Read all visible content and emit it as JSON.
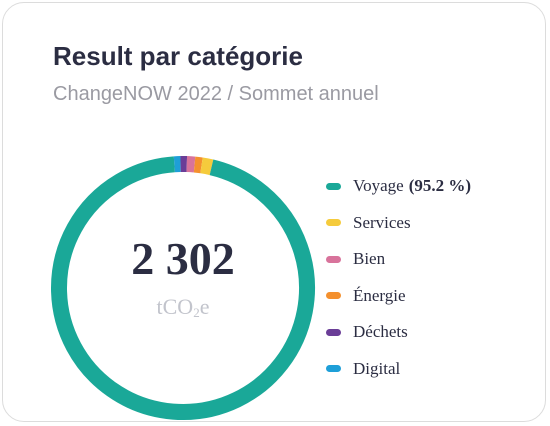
{
  "card": {
    "title": "Result par catégorie",
    "subtitle": "ChangeNOW 2022 / Sommet annuel"
  },
  "chart_data": {
    "type": "pie",
    "variant": "donut",
    "title": "Result par catégorie",
    "subtitle": "ChangeNOW 2022 / Sommet annuel",
    "total_label": "2 302",
    "unit": "tCO₂e",
    "unit_base": "tCO",
    "unit_sub": "2",
    "unit_suffix": "e",
    "legend_position": "right",
    "slices": [
      {
        "name": "Voyage",
        "percent": 95.2,
        "percent_label": "(95.2 %)",
        "color": "#1aa898"
      },
      {
        "name": "Services",
        "percent": 1.3,
        "color": "#f5cb3c"
      },
      {
        "name": "Bien",
        "percent": 1.0,
        "color": "#d8739b"
      },
      {
        "name": "Énergie",
        "percent": 0.9,
        "color": "#f4902e"
      },
      {
        "name": "Déchets",
        "percent": 0.8,
        "color": "#6a3d97"
      },
      {
        "name": "Digital",
        "percent": 0.8,
        "color": "#1e9fd8"
      }
    ]
  }
}
